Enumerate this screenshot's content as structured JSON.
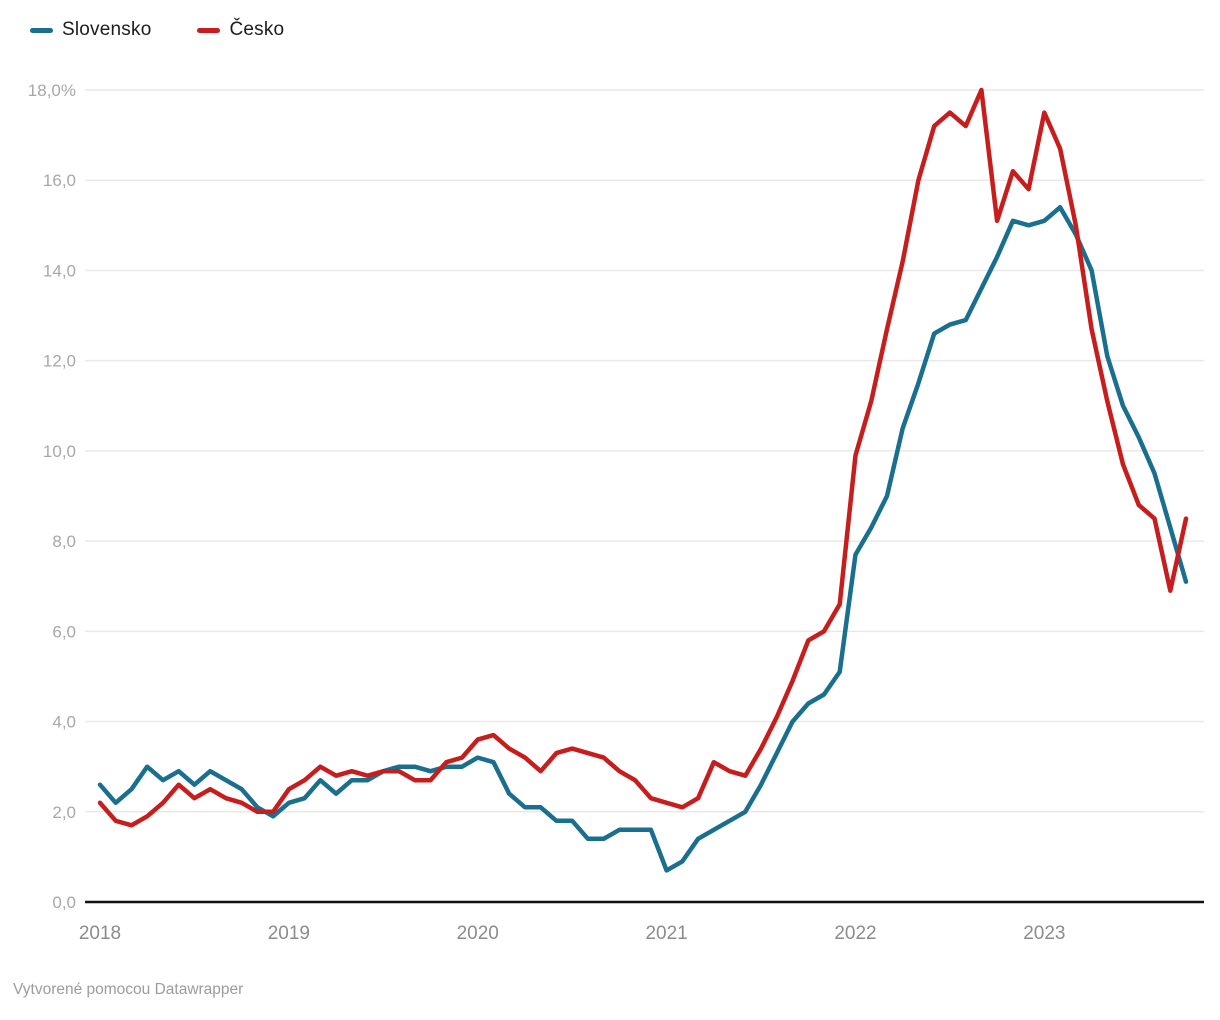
{
  "legend": {
    "items": [
      {
        "label": "Slovensko",
        "color": "#1a6f8f"
      },
      {
        "label": "Česko",
        "color": "#c71e1d"
      }
    ]
  },
  "footer": {
    "text": "Vytvorené pomocou Datawrapper"
  },
  "colors": {
    "grid": "#e9e9e9",
    "baseline": "#111111",
    "y_tick_text": "#a8a8a8",
    "x_tick_text": "#8c8c8c"
  },
  "chart_data": {
    "type": "line",
    "title": "",
    "xlabel": "",
    "ylabel": "",
    "ylim": [
      0,
      18
    ],
    "grid": "horizontal",
    "legend_position": "top-left",
    "unit": "%",
    "x": [
      "2018-01",
      "2018-02",
      "2018-03",
      "2018-04",
      "2018-05",
      "2018-06",
      "2018-07",
      "2018-08",
      "2018-09",
      "2018-10",
      "2018-11",
      "2018-12",
      "2019-01",
      "2019-02",
      "2019-03",
      "2019-04",
      "2019-05",
      "2019-06",
      "2019-07",
      "2019-08",
      "2019-09",
      "2019-10",
      "2019-11",
      "2019-12",
      "2020-01",
      "2020-02",
      "2020-03",
      "2020-04",
      "2020-05",
      "2020-06",
      "2020-07",
      "2020-08",
      "2020-09",
      "2020-10",
      "2020-11",
      "2020-12",
      "2021-01",
      "2021-02",
      "2021-03",
      "2021-04",
      "2021-05",
      "2021-06",
      "2021-07",
      "2021-08",
      "2021-09",
      "2021-10",
      "2021-11",
      "2021-12",
      "2022-01",
      "2022-02",
      "2022-03",
      "2022-04",
      "2022-05",
      "2022-06",
      "2022-07",
      "2022-08",
      "2022-09",
      "2022-10",
      "2022-11",
      "2022-12",
      "2023-01",
      "2023-02",
      "2023-03",
      "2023-04",
      "2023-05",
      "2023-06",
      "2023-07",
      "2023-08",
      "2023-09",
      "2023-10"
    ],
    "series": [
      {
        "name": "Slovensko",
        "color": "#1a6f8f",
        "values": [
          2.6,
          2.2,
          2.5,
          3.0,
          2.7,
          2.9,
          2.6,
          2.9,
          2.7,
          2.5,
          2.1,
          1.9,
          2.2,
          2.3,
          2.7,
          2.4,
          2.7,
          2.7,
          2.9,
          3.0,
          3.0,
          2.9,
          3.0,
          3.0,
          3.2,
          3.1,
          2.4,
          2.1,
          2.1,
          1.8,
          1.8,
          1.4,
          1.4,
          1.6,
          1.6,
          1.6,
          0.7,
          0.9,
          1.4,
          1.6,
          1.8,
          2.0,
          2.6,
          3.3,
          4.0,
          4.4,
          4.6,
          5.1,
          7.7,
          8.3,
          9.0,
          10.5,
          11.5,
          12.6,
          12.8,
          12.9,
          13.6,
          14.3,
          15.1,
          15.0,
          15.1,
          15.4,
          14.8,
          14.0,
          12.1,
          11.0,
          10.3,
          9.5,
          8.3,
          7.1
        ]
      },
      {
        "name": "Česko",
        "color": "#c71e1d",
        "values": [
          2.2,
          1.8,
          1.7,
          1.9,
          2.2,
          2.6,
          2.3,
          2.5,
          2.3,
          2.2,
          2.0,
          2.0,
          2.5,
          2.7,
          3.0,
          2.8,
          2.9,
          2.8,
          2.9,
          2.9,
          2.7,
          2.7,
          3.1,
          3.2,
          3.6,
          3.7,
          3.4,
          3.2,
          2.9,
          3.3,
          3.4,
          3.3,
          3.2,
          2.9,
          2.7,
          2.3,
          2.2,
          2.1,
          2.3,
          3.1,
          2.9,
          2.8,
          3.4,
          4.1,
          4.9,
          5.8,
          6.0,
          6.6,
          9.9,
          11.1,
          12.7,
          14.2,
          16.0,
          17.2,
          17.5,
          17.2,
          18.0,
          15.1,
          16.2,
          15.8,
          17.5,
          16.7,
          15.0,
          12.7,
          11.1,
          9.7,
          8.8,
          8.5,
          6.9,
          8.5
        ]
      }
    ],
    "y_ticks": [
      {
        "value": 0,
        "label": "0,0"
      },
      {
        "value": 2,
        "label": "2,0"
      },
      {
        "value": 4,
        "label": "4,0"
      },
      {
        "value": 6,
        "label": "6,0"
      },
      {
        "value": 8,
        "label": "8,0"
      },
      {
        "value": 10,
        "label": "10,0"
      },
      {
        "value": 12,
        "label": "12,0"
      },
      {
        "value": 14,
        "label": "14,0"
      },
      {
        "value": 16,
        "label": "16,0"
      },
      {
        "value": 18,
        "label": "18,0%"
      }
    ],
    "x_ticks": [
      {
        "month_index": 0,
        "label": "2018"
      },
      {
        "month_index": 12,
        "label": "2019"
      },
      {
        "month_index": 24,
        "label": "2020"
      },
      {
        "month_index": 36,
        "label": "2021"
      },
      {
        "month_index": 48,
        "label": "2022"
      },
      {
        "month_index": 60,
        "label": "2023"
      }
    ]
  }
}
